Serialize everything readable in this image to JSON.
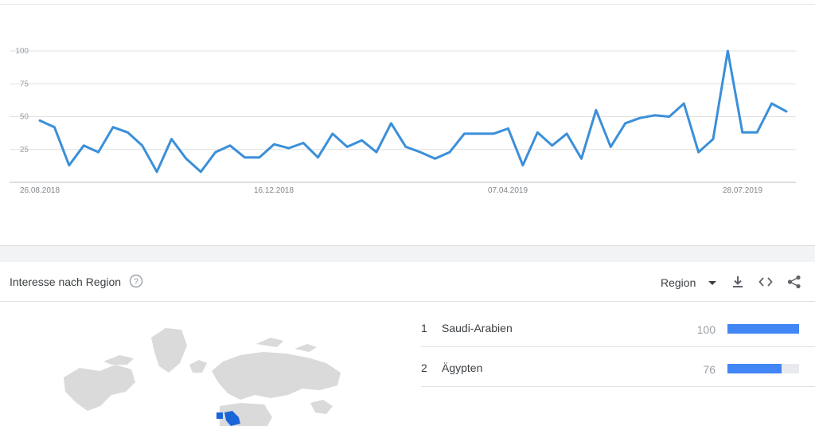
{
  "chart_data": {
    "type": "line",
    "x_tick_labels": [
      "26.08.2018",
      "16.12.2018",
      "07.04.2019",
      "28.07.2019"
    ],
    "y_tick_labels": [
      "100",
      "75",
      "50",
      "25"
    ],
    "ylim": [
      0,
      100
    ],
    "line_color": "#3b8fd9",
    "grid": true,
    "series": [
      {
        "values": [
          47,
          42,
          13,
          28,
          23,
          42,
          38,
          28,
          8,
          33,
          18,
          8,
          23,
          28,
          19,
          19,
          29,
          26,
          30,
          19,
          37,
          27,
          32,
          23,
          45,
          27,
          23,
          18,
          23,
          37,
          37,
          37,
          41,
          13,
          38,
          28,
          37,
          18,
          55,
          27,
          45,
          49,
          51,
          50,
          60,
          23,
          33,
          100,
          38,
          38,
          60,
          54
        ]
      }
    ]
  },
  "region_panel": {
    "title": "Interesse nach Region",
    "help_icon": "question-circle-icon",
    "selector_label": "Region",
    "tools": [
      "download-icon",
      "embed-code-icon",
      "share-icon"
    ],
    "rows": [
      {
        "rank": "1",
        "name": "Saudi-Arabien",
        "value": "100",
        "fraction": 1.0
      },
      {
        "rank": "2",
        "name": "Ägypten",
        "value": "76",
        "fraction": 0.76
      }
    ],
    "bar_color": "#4285f4",
    "map_highlight_color": "#1a66d9"
  }
}
